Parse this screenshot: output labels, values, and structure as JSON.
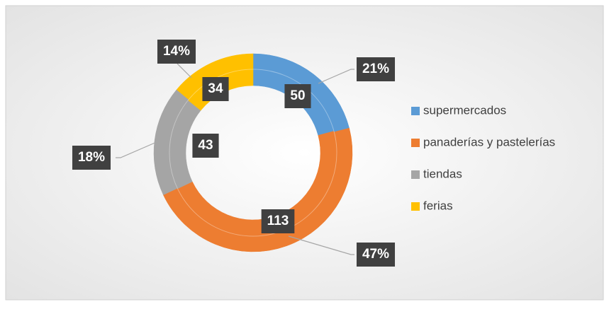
{
  "chart_data": {
    "type": "doughnut",
    "categories": [
      "supermercados",
      "panaderías y pastelerías",
      "tiendas",
      "ferias"
    ],
    "colors": [
      "#5b9bd5",
      "#ed7d31",
      "#a5a5a5",
      "#ffc000"
    ],
    "series": [
      {
        "values": [
          50,
          113,
          43,
          34
        ]
      },
      {
        "values": [
          21,
          47,
          18,
          14
        ],
        "value_labels": [
          "21%",
          "47%",
          "18%",
          "14%"
        ]
      }
    ],
    "legend": "right"
  }
}
